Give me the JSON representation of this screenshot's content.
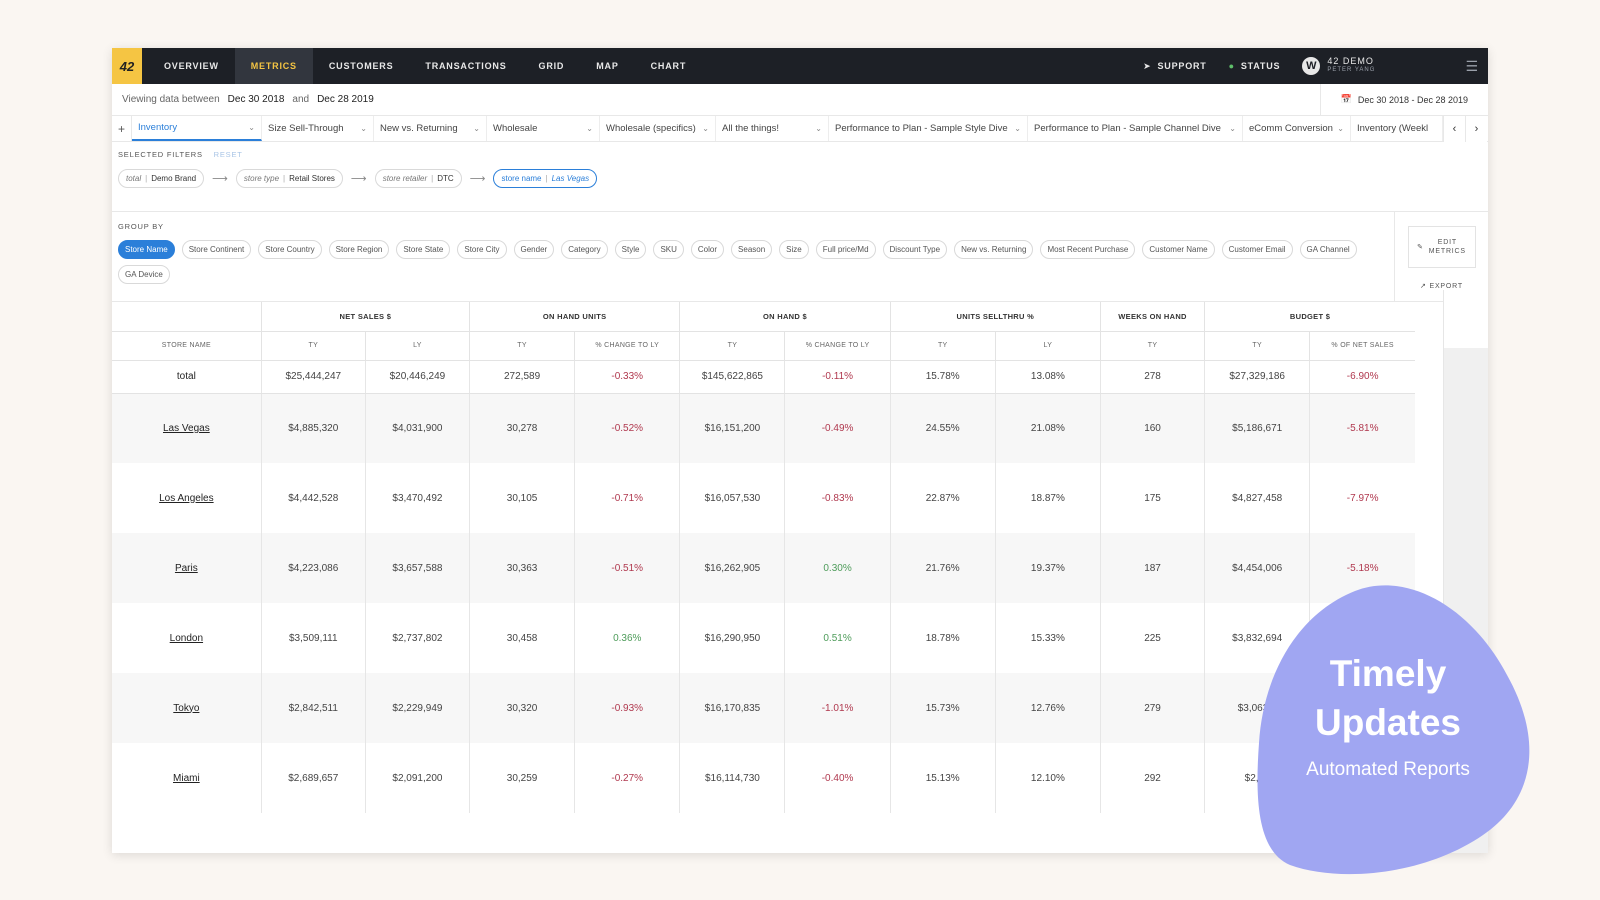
{
  "nav": {
    "logo": "42",
    "tabs": [
      "OVERVIEW",
      "METRICS",
      "CUSTOMERS",
      "TRANSACTIONS",
      "GRID",
      "MAP",
      "CHART"
    ],
    "active_tab": "METRICS",
    "support": "SUPPORT",
    "status": "STATUS",
    "user_name": "42 DEMO",
    "user_sub": "PETER YANG"
  },
  "date_range": {
    "label_prefix": "Viewing data between",
    "start": "Dec 30 2018",
    "conjunction": "and",
    "end": "Dec 28 2019",
    "picker_value": "Dec 30 2018 - Dec 28 2019"
  },
  "views": {
    "add": "+",
    "items": [
      "Inventory",
      "Size Sell-Through",
      "New vs. Returning",
      "Wholesale",
      "Wholesale (specifics)",
      "All the things!",
      "Performance to Plan - Sample Style Dive",
      "Performance to Plan - Sample Channel Dive",
      "eComm Conversion",
      "Inventory (Weekl"
    ]
  },
  "filters": {
    "label": "SELECTED FILTERS",
    "reset": "RESET",
    "chips": [
      {
        "key": "total",
        "value": "Demo Brand"
      },
      {
        "key": "store type",
        "value": "Retail Stores"
      },
      {
        "key": "store retailer",
        "value": "DTC"
      },
      {
        "key": "store name",
        "value": "Las Vegas"
      }
    ]
  },
  "group_by": {
    "label": "GROUP BY",
    "items": [
      "Store Name",
      "Store Continent",
      "Store Country",
      "Store Region",
      "Store State",
      "Store City",
      "Gender",
      "Category",
      "Style",
      "SKU",
      "Color",
      "Season",
      "Size",
      "Full price/Md",
      "Discount Type",
      "New vs. Returning",
      "Most Recent Purchase",
      "Customer Name",
      "Customer Email",
      "GA Channel",
      "GA Device"
    ],
    "active": "Store Name",
    "edit_metrics_1": "EDIT",
    "edit_metrics_2": "METRICS",
    "export": "EXPORT"
  },
  "table": {
    "groups": [
      "NET SALES $",
      "ON HAND UNITS",
      "ON HAND $",
      "UNITS SELLTHRU %",
      "WEEKS ON HAND",
      "BUDGET $"
    ],
    "subheaders": [
      "STORE NAME",
      "TY",
      "LY",
      "TY",
      "% CHANGE TO LY",
      "TY",
      "% CHANGE TO LY",
      "TY",
      "LY",
      "TY",
      "TY",
      "% OF NET SALES"
    ],
    "total": [
      "total",
      "$25,444,247",
      "$20,446,249",
      "272,589",
      "-0.33%",
      "$145,622,865",
      "-0.11%",
      "15.78%",
      "13.08%",
      "278",
      "$27,329,186",
      "-6.90%"
    ],
    "rows": [
      [
        "Las Vegas",
        "$4,885,320",
        "$4,031,900",
        "30,278",
        "-0.52%",
        "$16,151,200",
        "-0.49%",
        "24.55%",
        "21.08%",
        "160",
        "$5,186,671",
        "-5.81%"
      ],
      [
        "Los Angeles",
        "$4,442,528",
        "$3,470,492",
        "30,105",
        "-0.71%",
        "$16,057,530",
        "-0.83%",
        "22.87%",
        "18.87%",
        "175",
        "$4,827,458",
        "-7.97%"
      ],
      [
        "Paris",
        "$4,223,086",
        "$3,657,588",
        "30,363",
        "-0.51%",
        "$16,262,905",
        "0.30%",
        "21.76%",
        "19.37%",
        "187",
        "$4,454,006",
        "-5.18%"
      ],
      [
        "London",
        "$3,509,111",
        "$2,737,802",
        "30,458",
        "0.36%",
        "$16,290,950",
        "0.51%",
        "18.78%",
        "15.33%",
        "225",
        "$3,832,694",
        ""
      ],
      [
        "Tokyo",
        "$2,842,511",
        "$2,229,949",
        "30,320",
        "-0.93%",
        "$16,170,835",
        "-1.01%",
        "15.73%",
        "12.76%",
        "279",
        "$3,063,0",
        ""
      ],
      [
        "Miami",
        "$2,689,657",
        "$2,091,200",
        "30,259",
        "-0.27%",
        "$16,114,730",
        "-0.40%",
        "15.13%",
        "12.10%",
        "292",
        "$2,92",
        ""
      ]
    ]
  },
  "promo": {
    "title_1": "Timely",
    "title_2": "Updates",
    "subtitle": "Automated Reports",
    "color": "#a0a6f2"
  }
}
